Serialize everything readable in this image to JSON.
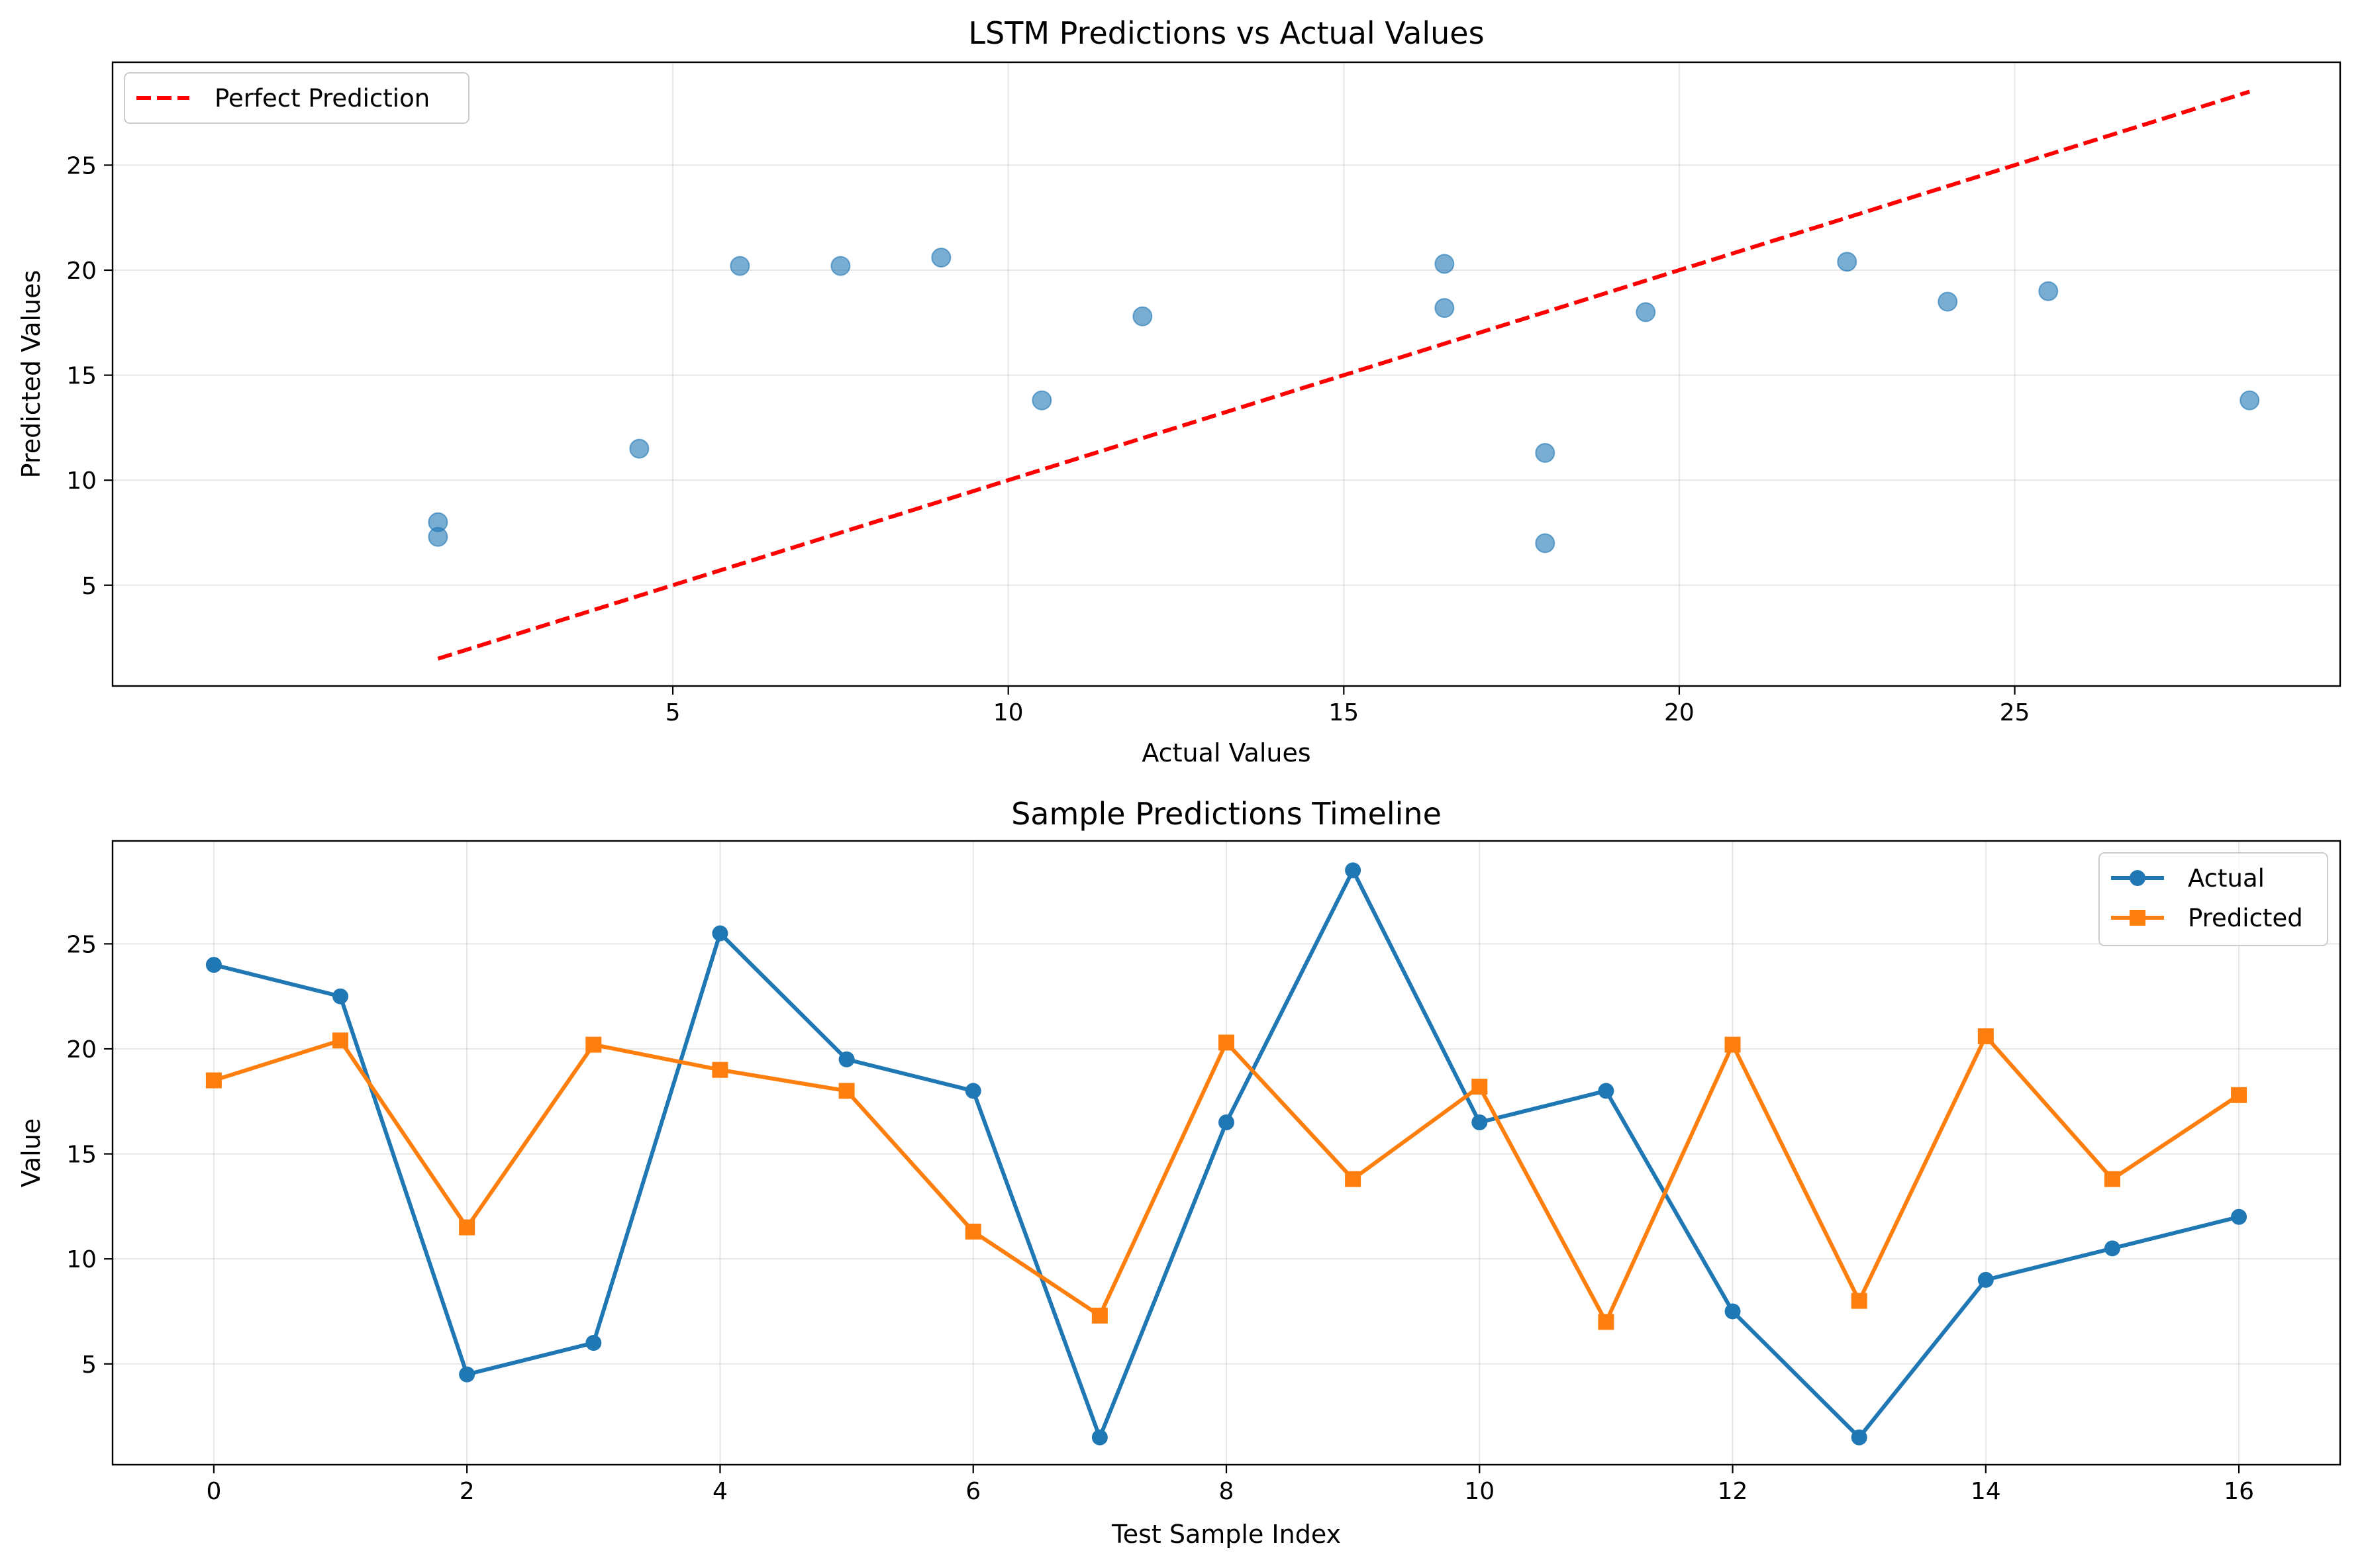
{
  "chart_data": [
    {
      "type": "scatter",
      "title": "LSTM Predictions vs Actual Values",
      "xlabel": "Actual Values",
      "ylabel": "Predicted Values",
      "xlim": [
        -3.35,
        29.85
      ],
      "ylim": [
        0.2,
        29.9
      ],
      "xticks": [
        5,
        10,
        15,
        20,
        25
      ],
      "yticks": [
        5,
        10,
        15,
        20,
        25
      ],
      "grid": true,
      "legend": "upper-left",
      "colors": {
        "points": "#1f77b4",
        "reference": "#ff0000"
      },
      "points": {
        "x": [
          24.0,
          22.5,
          4.5,
          6.0,
          25.5,
          19.5,
          18.0,
          1.5,
          16.5,
          28.5,
          16.5,
          18.0,
          7.5,
          1.5,
          9.0,
          10.5,
          12.0
        ],
        "y": [
          18.5,
          20.4,
          11.5,
          20.2,
          19.0,
          18.0,
          11.3,
          7.3,
          20.3,
          13.8,
          18.2,
          7.0,
          20.2,
          8.0,
          20.6,
          13.8,
          17.8
        ]
      },
      "reference_line": {
        "name": "Perfect Prediction",
        "x": [
          1.5,
          28.5
        ],
        "y": [
          1.5,
          28.5
        ]
      }
    },
    {
      "type": "line",
      "title": "Sample Predictions Timeline",
      "xlabel": "Test Sample Index",
      "ylabel": "Value",
      "xlim": [
        -0.8,
        16.8
      ],
      "ylim": [
        0.2,
        29.9
      ],
      "xticks": [
        0,
        2,
        4,
        6,
        8,
        10,
        12,
        14,
        16
      ],
      "yticks": [
        5,
        10,
        15,
        20,
        25
      ],
      "grid": true,
      "legend": "upper-right",
      "x": [
        0,
        1,
        2,
        3,
        4,
        5,
        6,
        7,
        8,
        9,
        10,
        11,
        12,
        13,
        14,
        15,
        16
      ],
      "series": [
        {
          "name": "Actual",
          "color": "#1f77b4",
          "marker": "circle",
          "values": [
            24.0,
            22.5,
            4.5,
            6.0,
            25.5,
            19.5,
            18.0,
            1.5,
            16.5,
            28.5,
            16.5,
            18.0,
            7.5,
            1.5,
            9.0,
            10.5,
            12.0
          ]
        },
        {
          "name": "Predicted",
          "color": "#ff7f0e",
          "marker": "square",
          "values": [
            18.5,
            20.4,
            11.5,
            20.2,
            19.0,
            18.0,
            11.3,
            7.3,
            20.3,
            13.8,
            18.2,
            7.0,
            20.2,
            8.0,
            20.6,
            13.8,
            17.8
          ]
        }
      ]
    }
  ]
}
